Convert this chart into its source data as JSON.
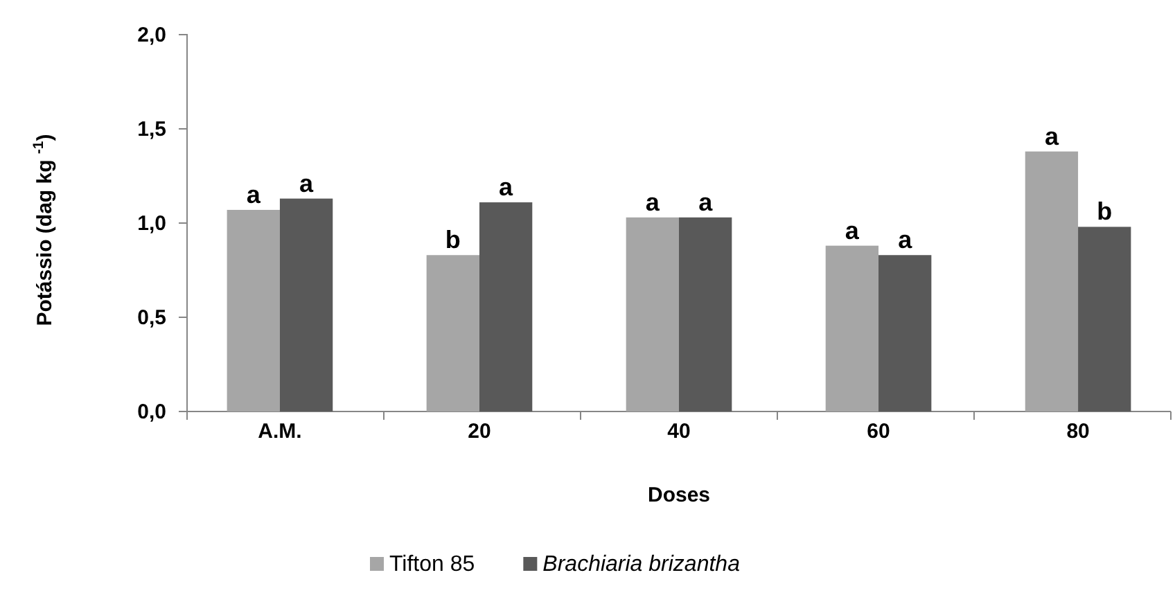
{
  "chart_data": {
    "type": "bar",
    "xlabel": "Doses",
    "ylabel": "Potássio  (dag kg $^{-1}$)",
    "categories": [
      "A.M.",
      "20",
      "40",
      "60",
      "80"
    ],
    "series": [
      {
        "name": "Tifton 85",
        "color": "#a6a6a6",
        "values": [
          1.07,
          0.83,
          1.03,
          0.88,
          1.38
        ],
        "value_labels": [
          "a",
          "b",
          "a",
          "a",
          "a"
        ]
      },
      {
        "name": "Brachiaria brizantha",
        "color": "#595959",
        "values": [
          1.13,
          1.11,
          1.03,
          0.83,
          0.98
        ],
        "value_labels": [
          "a",
          "a",
          "a",
          "a",
          "b"
        ]
      }
    ],
    "ylim": [
      0,
      2
    ],
    "yticks": [
      {
        "value": 0,
        "label": "0,0"
      },
      {
        "value": 0.5,
        "label": "0,5"
      },
      {
        "value": 1,
        "label": "1,0"
      },
      {
        "value": 1.5,
        "label": "1,5"
      },
      {
        "value": 2,
        "label": "2,0"
      }
    ],
    "grid": false,
    "legend": "bottom"
  }
}
